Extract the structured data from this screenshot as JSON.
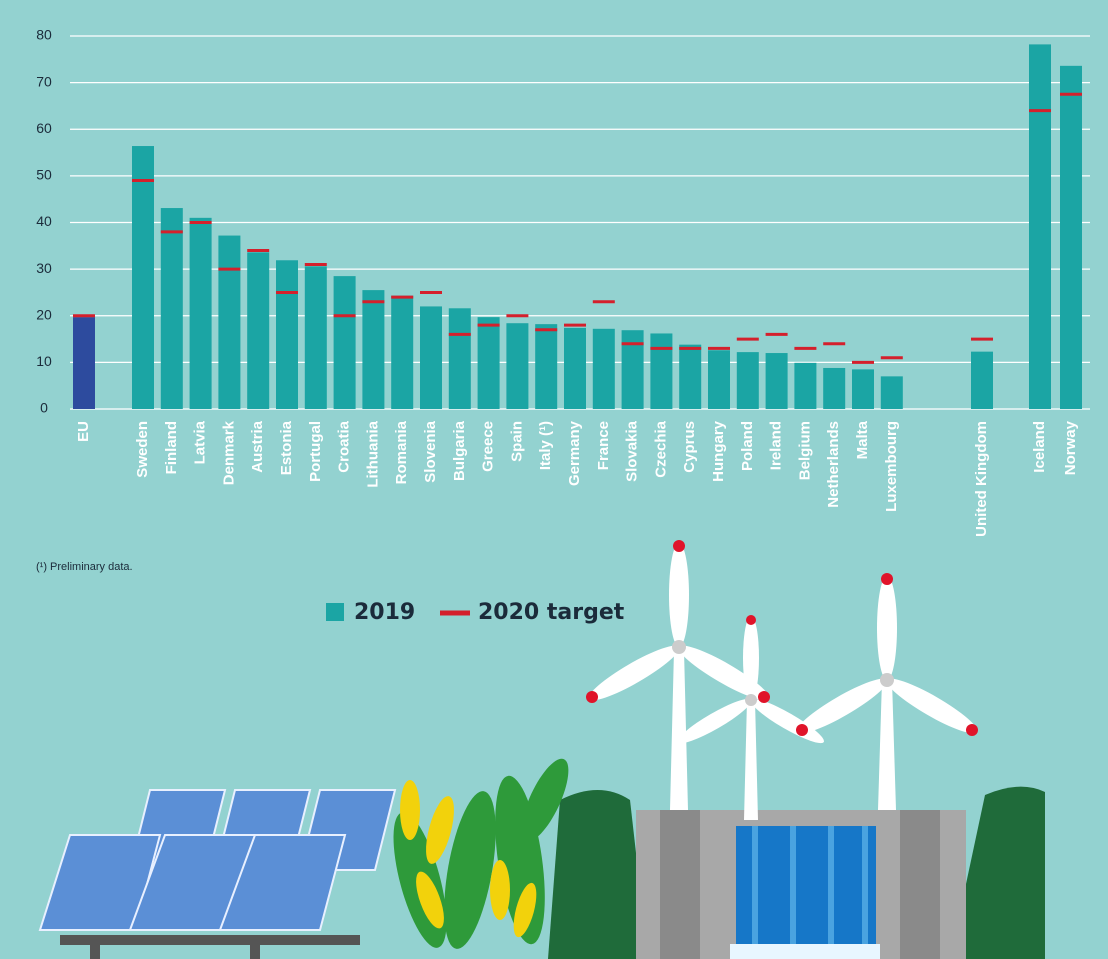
{
  "chart_data": {
    "type": "bar",
    "categories": [
      "EU",
      "Sweden",
      "Finland",
      "Latvia",
      "Denmark",
      "Austria",
      "Estonia",
      "Portugal",
      "Croatia",
      "Lithuania",
      "Romania",
      "Slovenia",
      "Bulgaria",
      "Greece",
      "Spain",
      "Italy (¹)",
      "Germany",
      "France",
      "Slovakia",
      "Czechia",
      "Cyprus",
      "Hungary",
      "Poland",
      "Ireland",
      "Belgium",
      "Netherlands",
      "Malta",
      "Luxembourg",
      "United Kingdom",
      "Iceland",
      "Norway"
    ],
    "series": [
      {
        "name": "2019",
        "color": "#1ba5a4",
        "highlight_color": "#2d4b9e",
        "values": [
          19.7,
          56.4,
          43.1,
          41.0,
          37.2,
          33.6,
          31.9,
          30.6,
          28.5,
          25.5,
          24.3,
          22.0,
          21.6,
          19.7,
          18.4,
          18.2,
          17.4,
          17.2,
          16.9,
          16.2,
          13.8,
          12.6,
          12.2,
          12.0,
          9.9,
          8.8,
          8.5,
          7.0,
          12.3,
          78.2,
          73.6
        ]
      },
      {
        "name": "2020 target",
        "color": "#d4202c",
        "values": [
          20,
          49,
          38,
          40,
          30,
          34,
          25,
          31,
          20,
          23,
          24,
          25,
          16,
          18,
          20,
          17,
          18,
          23,
          14,
          13,
          13,
          13,
          15,
          16,
          13,
          14,
          10,
          11,
          15,
          64,
          67.5
        ]
      }
    ],
    "ylim": [
      0,
      80
    ],
    "yticks": [
      0,
      10,
      20,
      30,
      40,
      50,
      60,
      70,
      80
    ],
    "grid": true,
    "footnote": "(¹) Preliminary data."
  }
}
